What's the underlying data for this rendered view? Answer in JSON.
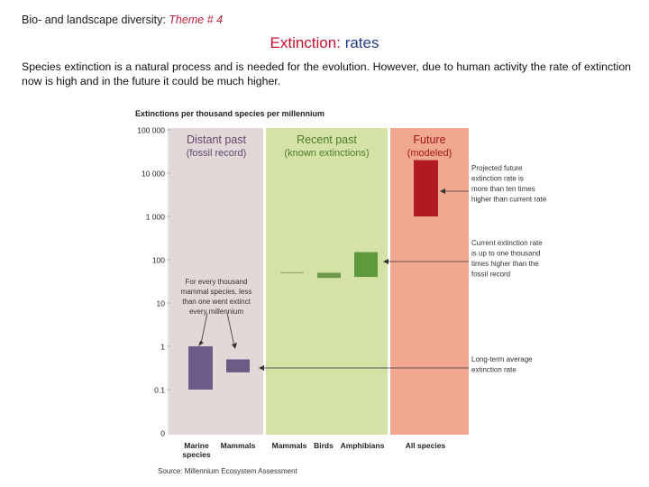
{
  "header": {
    "prefix": "Bio-  and landscape diversity:",
    "theme": "Theme # 4"
  },
  "slide_title": {
    "part1": "Extinction:",
    "part2": "rates"
  },
  "body_text": "Species extinction is a natural process and is needed for the evolution. However, due to human activity the rate of extinction now is high and in the future it could be much higher.",
  "chart_data": {
    "type": "bar",
    "title": "Extinctions per thousand species per millennium",
    "scale": "log",
    "y_ticks": [
      {
        "value": 0.1,
        "label": "0.1"
      },
      {
        "value": 1,
        "label": "1"
      },
      {
        "value": 10,
        "label": "10"
      },
      {
        "value": 100,
        "label": "100"
      },
      {
        "value": 1000,
        "label": "1 000"
      },
      {
        "value": 10000,
        "label": "10 000"
      },
      {
        "value": 100000,
        "label": "100 000"
      }
    ],
    "y_zero_label": "0",
    "ylim": [
      0.01,
      100000
    ],
    "panels": [
      {
        "title": "Distant past",
        "subtitle": "(fossil record)",
        "color": "#e3d7d7",
        "title_color": "#5e4a6e",
        "categories": [
          0,
          1
        ]
      },
      {
        "title": "Recent past",
        "subtitle": "(known extinctions)",
        "color": "#d4e2a6",
        "title_color": "#4f7d2a",
        "categories": [
          2,
          3,
          4
        ]
      },
      {
        "title": "Future",
        "subtitle": "(modeled)",
        "color": "#f0a890",
        "title_color": "#a01818",
        "categories": [
          5
        ]
      }
    ],
    "categories": [
      {
        "label": "Marine",
        "label2": "species",
        "low": 0.1,
        "high": 1,
        "color": "#6e5a86"
      },
      {
        "label": "Mammals",
        "label2": "",
        "low": 0.25,
        "high": 0.5,
        "color": "#6e5a86"
      },
      {
        "label": "Mammals",
        "label2": "",
        "low": 50,
        "high": 50,
        "color": "#8aa86a"
      },
      {
        "label": "Birds",
        "label2": "",
        "low": 38,
        "high": 50,
        "color": "#6f9a4a"
      },
      {
        "label": "Amphibians",
        "label2": "",
        "low": 40,
        "high": 150,
        "color": "#5c9a3c"
      },
      {
        "label": "All species",
        "label2": "",
        "low": 1000,
        "high": 20000,
        "color": "#b01a20"
      }
    ],
    "annotations": [
      {
        "text": [
          "For every thousand",
          "mammal species, less",
          "than one went extinct",
          "every millennium"
        ]
      },
      {
        "text": [
          "Projected future",
          "extinction rate is",
          "more than ten times",
          "higher than current rate"
        ]
      },
      {
        "text": [
          "Current extinction rate",
          "is up to one thousand",
          "times higher than the",
          "fossil record"
        ]
      },
      {
        "text": [
          "Long-term average",
          "extinction rate"
        ]
      }
    ],
    "source": "Source: Millennium Ecosystem Assessment",
    "grid": false,
    "legend": "none"
  }
}
